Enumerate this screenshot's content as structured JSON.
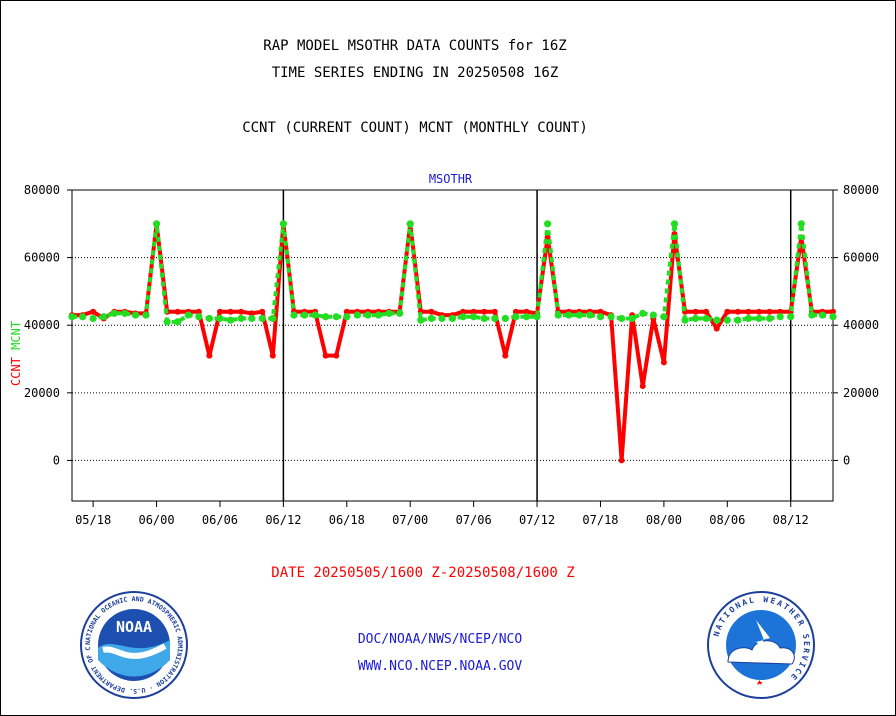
{
  "header": {
    "title_line1": "RAP MODEL MSOTHR DATA COUNTS for 16Z",
    "title_line2": "TIME SERIES ENDING IN 20250508 16Z",
    "subtitle": "CCNT (CURRENT COUNT) MCNT (MONTHLY COUNT)"
  },
  "footer": {
    "date_range": "DATE 20250505/1600 Z-20250508/1600 Z",
    "org_path": "DOC/NOAA/NWS/NCEP/NCO",
    "website": "WWW.NCO.NCEP.NOAA.GOV"
  },
  "logos": {
    "left_text": "NOAA",
    "left_ring_text": "NATIONAL OCEANIC AND ATMOSPHERIC ADMINISTRATION · U.S. DEPARTMENT OF COMMERCE",
    "right_ring_text": "NATIONAL WEATHER SERVICE"
  },
  "colors": {
    "ccnt": "#ff0000",
    "mcnt": "#22dd22",
    "title": "#000000",
    "footer": "#1a1ad6",
    "panel_label": "#1a1ad6"
  },
  "chart_data": {
    "type": "line",
    "panel_label": "MSOTHR",
    "ylabel_left_parts": [
      "CCNT",
      "MCNT"
    ],
    "ylim": [
      -12000,
      80000
    ],
    "y_ticks": [
      0,
      20000,
      40000,
      60000,
      80000
    ],
    "y_tick_labels": [
      "0",
      "20000",
      "40000",
      "60000",
      "80000"
    ],
    "x_tick_labels": [
      "05/18",
      "06/00",
      "06/06",
      "06/12",
      "06/18",
      "07/00",
      "07/06",
      "07/12",
      "07/18",
      "08/00",
      "08/06",
      "08/12"
    ],
    "x_tick_hours": [
      2,
      8,
      14,
      20,
      26,
      32,
      38,
      44,
      50,
      56,
      62,
      68
    ],
    "day_separator_hours": [
      20,
      44,
      68
    ],
    "x_range_hours": [
      0,
      72
    ],
    "grid_horizontal": true,
    "series": [
      {
        "name": "CCNT",
        "values": [
          43000,
          43000,
          44000,
          42000,
          44000,
          44000,
          43500,
          43500,
          70000,
          44000,
          44000,
          44000,
          44000,
          31000,
          44000,
          44000,
          44000,
          43500,
          44000,
          31000,
          70000,
          44000,
          44000,
          44000,
          31000,
          31000,
          44000,
          44000,
          44000,
          44000,
          44000,
          44000,
          70000,
          44000,
          44000,
          43000,
          43000,
          44000,
          44000,
          44000,
          44000,
          31000,
          44000,
          44000,
          43500,
          66000,
          44000,
          44000,
          44000,
          44000,
          44000,
          43000,
          0,
          43000,
          22000,
          42000,
          29000,
          67000,
          44000,
          44000,
          44000,
          39000,
          44000,
          44000,
          44000,
          44000,
          44000,
          44000,
          44000,
          66000,
          44000,
          44000,
          44000
        ]
      },
      {
        "name": "MCNT",
        "values": [
          42500,
          42500,
          42000,
          42500,
          43500,
          43500,
          43000,
          43000,
          70000,
          41000,
          41000,
          43000,
          42500,
          42000,
          42000,
          41500,
          42000,
          42000,
          42000,
          42000,
          70000,
          43000,
          43000,
          43000,
          42500,
          42500,
          42500,
          43000,
          43000,
          43000,
          43500,
          43500,
          70000,
          41500,
          42000,
          42000,
          42000,
          42500,
          42500,
          42000,
          42000,
          42000,
          42500,
          42500,
          42500,
          70000,
          43000,
          43000,
          43000,
          43000,
          42500,
          42500,
          42000,
          42000,
          43500,
          43000,
          42500,
          70000,
          41500,
          42000,
          42000,
          41500,
          41500,
          41500,
          42000,
          42000,
          42000,
          42500,
          42500,
          70000,
          43000,
          43000,
          42500
        ]
      }
    ]
  }
}
